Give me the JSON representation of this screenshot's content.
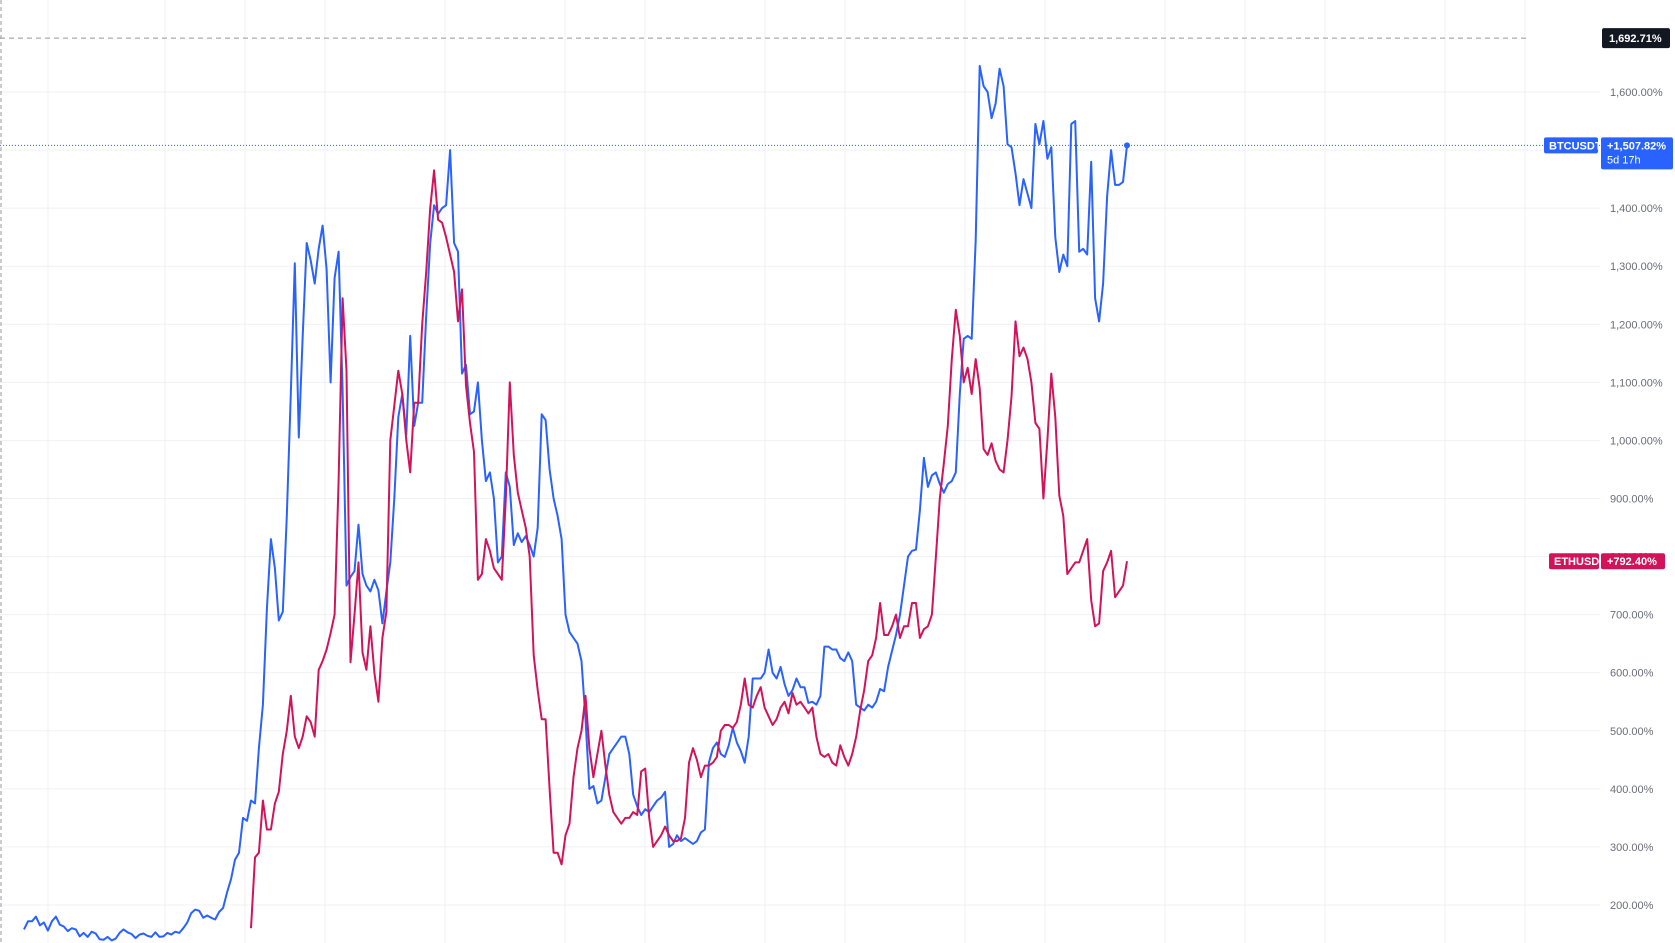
{
  "chart_data": {
    "type": "line",
    "ylim": [
      160,
      1720
    ],
    "y_ticks": [
      {
        "value": 200,
        "label": "200.00%"
      },
      {
        "value": 300,
        "label": "300.00%"
      },
      {
        "value": 400,
        "label": "400.00%"
      },
      {
        "value": 500,
        "label": "500.00%"
      },
      {
        "value": 600,
        "label": "600.00%"
      },
      {
        "value": 700,
        "label": "700.00%"
      },
      {
        "value": 800,
        "label": "800.00%"
      },
      {
        "value": 900,
        "label": "900.00%"
      },
      {
        "value": 1000,
        "label": "1,000.00%"
      },
      {
        "value": 1100,
        "label": "1,100.00%"
      },
      {
        "value": 1200,
        "label": "1,200.00%"
      },
      {
        "value": 1300,
        "label": "1,300.00%"
      },
      {
        "value": 1400,
        "label": "1,400.00%"
      },
      {
        "value": 1500,
        "label": "1,500.00%"
      },
      {
        "value": 1600,
        "label": "1,600.00%"
      }
    ],
    "crosshair": {
      "value": 1692.71,
      "label": "1,692.71%"
    },
    "grid": true,
    "series": [
      {
        "name": "BTCUSDT",
        "color": "#2962ff",
        "last_label": "+1,507.82%",
        "countdown": "5d 17h",
        "values": [
          158,
          172,
          172,
          180,
          165,
          170,
          156,
          172,
          180,
          166,
          163,
          155,
          160,
          158,
          146,
          152,
          145,
          154,
          151,
          141,
          140,
          145,
          139,
          142,
          152,
          158,
          153,
          150,
          143,
          149,
          151,
          147,
          145,
          153,
          145,
          146,
          152,
          149,
          154,
          152,
          160,
          170,
          186,
          192,
          190,
          178,
          182,
          178,
          175,
          188,
          195,
          222,
          245,
          278,
          290,
          350,
          345,
          380,
          375,
          470,
          545,
          710,
          830,
          780,
          690,
          705,
          870,
          1080,
          1305,
          1005,
          1180,
          1340,
          1310,
          1270,
          1330,
          1370,
          1295,
          1100,
          1280,
          1325,
          1085,
          750,
          765,
          775,
          855,
          770,
          750,
          740,
          760,
          742,
          685,
          740,
          790,
          900,
          1040,
          1080,
          1010,
          1180,
          1025,
          1065,
          1065,
          1215,
          1340,
          1405,
          1390,
          1400,
          1405,
          1500,
          1340,
          1325,
          1115,
          1130,
          1045,
          1050,
          1100,
          1000,
          930,
          945,
          900,
          790,
          800,
          945,
          920,
          820,
          840,
          825,
          835,
          820,
          800,
          850,
          1045,
          1035,
          950,
          900,
          870,
          830,
          700,
          670,
          660,
          650,
          620,
          520,
          400,
          405,
          375,
          380,
          420,
          460,
          470,
          480,
          490,
          490,
          460,
          390,
          370,
          355,
          365,
          360,
          370,
          380,
          385,
          395,
          300,
          305,
          320,
          310,
          315,
          310,
          305,
          310,
          325,
          330,
          445,
          470,
          480,
          460,
          455,
          475,
          505,
          480,
          465,
          445,
          490,
          590,
          590,
          590,
          600,
          640,
          600,
          590,
          610,
          580,
          560,
          570,
          590,
          575,
          575,
          548,
          550,
          545,
          560,
          645,
          645,
          640,
          640,
          625,
          620,
          635,
          620,
          545,
          540,
          535,
          545,
          540,
          550,
          572,
          568,
          610,
          638,
          665,
          700,
          750,
          800,
          810,
          812,
          880,
          970,
          920,
          940,
          945,
          925,
          910,
          925,
          930,
          945,
          1080,
          1175,
          1180,
          1175,
          1345,
          1645,
          1610,
          1600,
          1555,
          1580,
          1640,
          1610,
          1510,
          1505,
          1460,
          1405,
          1450,
          1425,
          1400,
          1545,
          1510,
          1550,
          1485,
          1505,
          1350,
          1290,
          1320,
          1300,
          1545,
          1550,
          1325,
          1330,
          1320,
          1480,
          1245,
          1205,
          1270,
          1420,
          1500,
          1440,
          1440,
          1445,
          1508
        ],
        "values_offset": 0
      },
      {
        "name": "ETHUSD",
        "color": "#d1145a",
        "last_label": "+792.40%",
        "values": [
          160,
          282,
          290,
          380,
          330,
          330,
          375,
          395,
          460,
          500,
          560,
          490,
          470,
          490,
          525,
          515,
          490,
          605,
          620,
          640,
          668,
          700,
          930,
          1245,
          1120,
          618,
          700,
          790,
          635,
          605,
          680,
          600,
          550,
          660,
          705,
          1000,
          1060,
          1120,
          1080,
          1000,
          945,
          1065,
          1065,
          1200,
          1290,
          1400,
          1465,
          1380,
          1375,
          1350,
          1320,
          1290,
          1205,
          1260,
          1095,
          1030,
          980,
          760,
          770,
          830,
          810,
          780,
          770,
          760,
          900,
          1100,
          975,
          910,
          880,
          850,
          800,
          630,
          570,
          520,
          520,
          400,
          290,
          290,
          270,
          320,
          340,
          420,
          470,
          500,
          560,
          470,
          420,
          460,
          500,
          440,
          390,
          360,
          350,
          340,
          350,
          350,
          360,
          355,
          430,
          435,
          350,
          300,
          310,
          320,
          335,
          320,
          310,
          310,
          315,
          350,
          445,
          470,
          450,
          420,
          440,
          440,
          445,
          455,
          500,
          510,
          510,
          505,
          515,
          545,
          590,
          545,
          540,
          560,
          575,
          540,
          525,
          510,
          520,
          540,
          550,
          530,
          565,
          545,
          550,
          540,
          530,
          540,
          490,
          460,
          455,
          460,
          445,
          440,
          475,
          455,
          440,
          460,
          490,
          535,
          570,
          620,
          630,
          660,
          720,
          665,
          665,
          680,
          700,
          660,
          680,
          680,
          720,
          720,
          660,
          675,
          680,
          700,
          800,
          900,
          960,
          1025,
          1140,
          1225,
          1180,
          1100,
          1125,
          1080,
          1140,
          1090,
          985,
          975,
          995,
          965,
          950,
          945,
          1000,
          1075,
          1205,
          1145,
          1160,
          1140,
          1100,
          1030,
          1020,
          900,
          1000,
          1115,
          1040,
          905,
          870,
          770,
          780,
          790,
          790,
          810,
          830,
          725,
          680,
          685,
          775,
          790,
          810,
          730,
          740,
          750,
          792
        ],
        "values_offset": 0
      }
    ]
  }
}
